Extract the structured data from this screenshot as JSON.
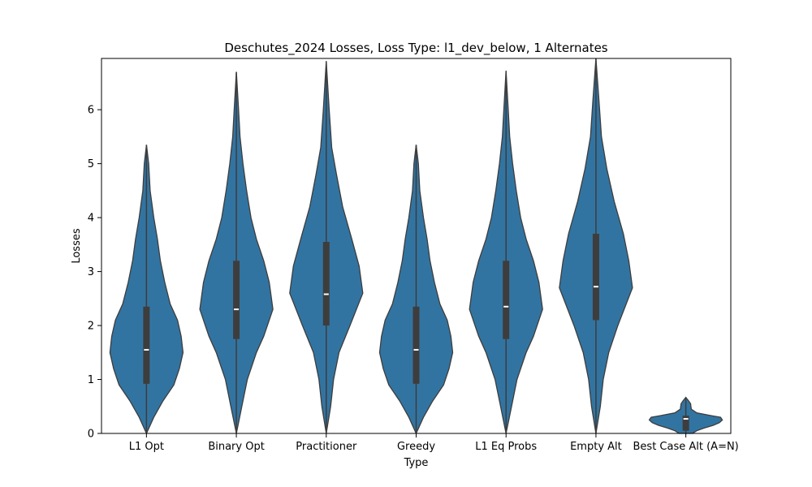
{
  "chart_data": {
    "type": "violin",
    "title": "Deschutes_2024 Losses, Loss Type: l1_dev_below, 1 Alternates",
    "xlabel": "Type",
    "ylabel": "Losses",
    "ylim": [
      0,
      6.95
    ],
    "yticks": [
      0,
      1,
      2,
      3,
      4,
      5,
      6
    ],
    "grid": false,
    "fill_color": "#3274a1",
    "box_color": "#3d3d3d",
    "categories": [
      "L1 Opt",
      "Binary Opt",
      "Practitioner",
      "Greedy",
      "L1 Eq Probs",
      "Empty Alt",
      "Best Case Alt (A=N)"
    ],
    "series": [
      {
        "category": "L1 Opt",
        "min": 0,
        "q1": 0.92,
        "median": 1.55,
        "q3": 2.35,
        "max": 5.35,
        "profile": [
          [
            0,
            0
          ],
          [
            0.3,
            0.2
          ],
          [
            0.6,
            0.45
          ],
          [
            0.9,
            0.75
          ],
          [
            1.2,
            0.9
          ],
          [
            1.5,
            1
          ],
          [
            1.8,
            0.95
          ],
          [
            2.1,
            0.85
          ],
          [
            2.4,
            0.65
          ],
          [
            2.8,
            0.5
          ],
          [
            3.2,
            0.38
          ],
          [
            3.6,
            0.3
          ],
          [
            4,
            0.2
          ],
          [
            4.5,
            0.1
          ],
          [
            5,
            0.06
          ],
          [
            5.35,
            0
          ]
        ]
      },
      {
        "category": "Binary Opt",
        "min": 0,
        "q1": 1.75,
        "median": 2.3,
        "q3": 3.2,
        "max": 6.7,
        "profile": [
          [
            0,
            0
          ],
          [
            0.5,
            0.15
          ],
          [
            1,
            0.3
          ],
          [
            1.5,
            0.55
          ],
          [
            1.8,
            0.75
          ],
          [
            2.3,
            1
          ],
          [
            2.8,
            0.9
          ],
          [
            3.2,
            0.75
          ],
          [
            3.6,
            0.55
          ],
          [
            4,
            0.4
          ],
          [
            4.5,
            0.28
          ],
          [
            5,
            0.18
          ],
          [
            5.5,
            0.1
          ],
          [
            6,
            0.06
          ],
          [
            6.7,
            0
          ]
        ]
      },
      {
        "category": "Practitioner",
        "min": 0,
        "q1": 2.0,
        "median": 2.58,
        "q3": 3.55,
        "max": 6.9,
        "profile": [
          [
            0,
            0
          ],
          [
            0.5,
            0.12
          ],
          [
            1,
            0.2
          ],
          [
            1.5,
            0.35
          ],
          [
            2,
            0.65
          ],
          [
            2.6,
            1
          ],
          [
            3.1,
            0.9
          ],
          [
            3.6,
            0.7
          ],
          [
            4.2,
            0.45
          ],
          [
            4.8,
            0.28
          ],
          [
            5.3,
            0.15
          ],
          [
            6,
            0.08
          ],
          [
            6.9,
            0
          ]
        ]
      },
      {
        "category": "Greedy",
        "min": 0,
        "q1": 0.92,
        "median": 1.55,
        "q3": 2.35,
        "max": 5.35,
        "profile": [
          [
            0,
            0
          ],
          [
            0.3,
            0.2
          ],
          [
            0.6,
            0.45
          ],
          [
            0.9,
            0.75
          ],
          [
            1.2,
            0.9
          ],
          [
            1.5,
            1
          ],
          [
            1.8,
            0.95
          ],
          [
            2.1,
            0.85
          ],
          [
            2.4,
            0.65
          ],
          [
            2.8,
            0.5
          ],
          [
            3.2,
            0.38
          ],
          [
            3.6,
            0.3
          ],
          [
            4,
            0.2
          ],
          [
            4.5,
            0.1
          ],
          [
            5,
            0.06
          ],
          [
            5.35,
            0
          ]
        ]
      },
      {
        "category": "L1 Eq Probs",
        "min": 0,
        "q1": 1.75,
        "median": 2.35,
        "q3": 3.2,
        "max": 6.72,
        "profile": [
          [
            0,
            0
          ],
          [
            0.5,
            0.15
          ],
          [
            1,
            0.3
          ],
          [
            1.5,
            0.55
          ],
          [
            1.8,
            0.75
          ],
          [
            2.3,
            1
          ],
          [
            2.8,
            0.9
          ],
          [
            3.2,
            0.75
          ],
          [
            3.6,
            0.55
          ],
          [
            4,
            0.4
          ],
          [
            4.5,
            0.28
          ],
          [
            5,
            0.18
          ],
          [
            5.5,
            0.1
          ],
          [
            6,
            0.06
          ],
          [
            6.72,
            0
          ]
        ]
      },
      {
        "category": "Empty Alt",
        "min": 0,
        "q1": 2.1,
        "median": 2.72,
        "q3": 3.7,
        "max": 6.95,
        "profile": [
          [
            0,
            0
          ],
          [
            0.5,
            0.12
          ],
          [
            1,
            0.2
          ],
          [
            1.5,
            0.35
          ],
          [
            2,
            0.6
          ],
          [
            2.7,
            1
          ],
          [
            3.2,
            0.9
          ],
          [
            3.7,
            0.75
          ],
          [
            4.3,
            0.5
          ],
          [
            4.9,
            0.3
          ],
          [
            5.5,
            0.15
          ],
          [
            6.2,
            0.08
          ],
          [
            6.95,
            0
          ]
        ]
      },
      {
        "category": "Best Case Alt (A=N)",
        "min": 0,
        "q1": 0.05,
        "median": 0.27,
        "q3": 0.33,
        "max": 0.67,
        "profile": [
          [
            0,
            0.18
          ],
          [
            0.05,
            0.3
          ],
          [
            0.1,
            0.5
          ],
          [
            0.15,
            0.75
          ],
          [
            0.2,
            0.92
          ],
          [
            0.25,
            1
          ],
          [
            0.3,
            0.95
          ],
          [
            0.33,
            0.7
          ],
          [
            0.38,
            0.3
          ],
          [
            0.45,
            0.15
          ],
          [
            0.5,
            0.14
          ],
          [
            0.55,
            0.13
          ],
          [
            0.6,
            0.08
          ],
          [
            0.67,
            0
          ]
        ]
      }
    ]
  }
}
